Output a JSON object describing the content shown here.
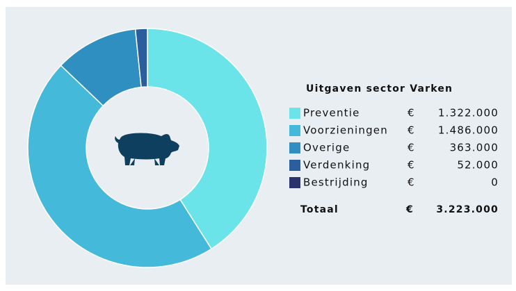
{
  "chart_data": {
    "type": "donut",
    "title": "Uitgaven sector Varken",
    "categories": [
      "Preventie",
      "Voorzieningen",
      "Overige",
      "Verdenking",
      "Bestrijding"
    ],
    "values": [
      1322000,
      1486000,
      363000,
      52000,
      0
    ],
    "value_labels": [
      "1.322.000",
      "1.486.000",
      "363.000",
      "52.000",
      "0"
    ],
    "colors": [
      "#6be4e9",
      "#45b9d9",
      "#2f8fc1",
      "#2a5e9d",
      "#2b336e"
    ],
    "currency": "€",
    "total_name": "Totaal",
    "total": 3223000,
    "total_label": "3.223.000"
  }
}
